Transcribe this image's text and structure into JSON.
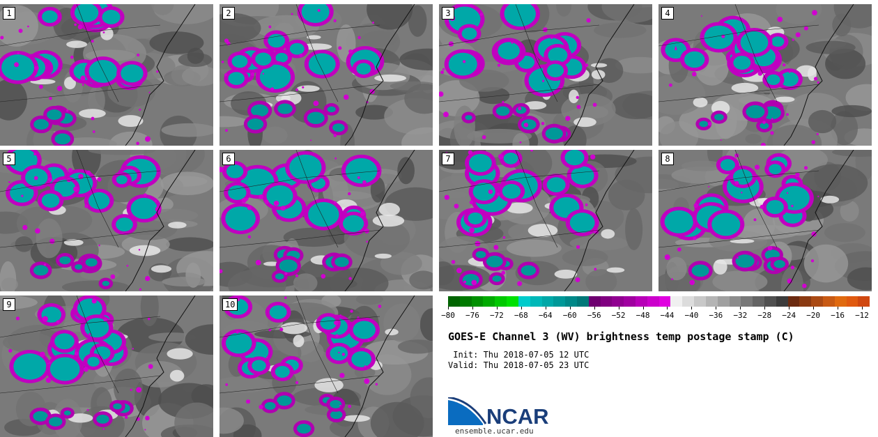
{
  "panels": [
    {
      "label": "1"
    },
    {
      "label": "2"
    },
    {
      "label": "3"
    },
    {
      "label": "4"
    },
    {
      "label": "5"
    },
    {
      "label": "6"
    },
    {
      "label": "7"
    },
    {
      "label": "8"
    },
    {
      "label": "9"
    },
    {
      "label": "10"
    }
  ],
  "colorbar": {
    "colors": [
      "#006400",
      "#007a00",
      "#009000",
      "#00aa00",
      "#00c800",
      "#00e000",
      "#00cccc",
      "#00b8b8",
      "#00a8a8",
      "#009898",
      "#008888",
      "#007878",
      "#6e0070",
      "#800080",
      "#900090",
      "#a000a0",
      "#b800b8",
      "#cc00cc",
      "#e000e0",
      "#f0f0f0",
      "#dcdcdc",
      "#c8c8c8",
      "#b4b4b4",
      "#a0a0a0",
      "#8c8c8c",
      "#787878",
      "#646464",
      "#505050",
      "#3c3c3c",
      "#6b2a10",
      "#8a3a12",
      "#aa4a14",
      "#c85a14",
      "#e06a10",
      "#e05a10",
      "#d04810"
    ],
    "ticks": [
      "−80",
      "−76",
      "−72",
      "−68",
      "−64",
      "−60",
      "−56",
      "−52",
      "−48",
      "−44",
      "−40",
      "−36",
      "−32",
      "−28",
      "−24",
      "−20",
      "−16",
      "−12"
    ]
  },
  "title": "GOES-E Channel 3 (WV) brightness temp postage stamp (C)",
  "init": " Init: Thu 2018-07-05 12 UTC",
  "valid": "Valid: Thu 2018-07-05 23 UTC",
  "logo_text": "NCAR",
  "url": "ensemble.ucar.edu"
}
